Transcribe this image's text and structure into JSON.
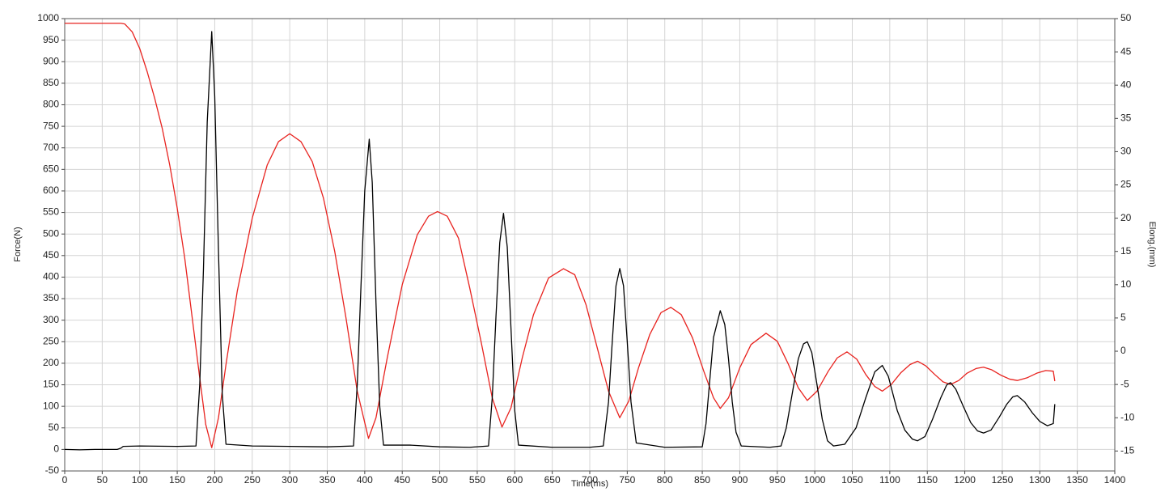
{
  "chart_data": {
    "type": "line",
    "xlabel": "Time(ms)",
    "ylabel": "Force(N)",
    "y2label": "Elong.(mm)",
    "xlim": [
      0,
      1400
    ],
    "xticks": [
      0,
      50,
      100,
      150,
      200,
      250,
      300,
      350,
      400,
      450,
      500,
      550,
      600,
      650,
      700,
      750,
      800,
      850,
      900,
      950,
      1000,
      1050,
      1100,
      1150,
      1200,
      1250,
      1300,
      1350,
      1400
    ],
    "ylim": [
      -50,
      1000
    ],
    "yticks": [
      -50,
      0,
      50,
      100,
      150,
      200,
      250,
      300,
      350,
      400,
      450,
      500,
      550,
      600,
      650,
      700,
      750,
      800,
      850,
      900,
      950,
      1000
    ],
    "y2lim": [
      -18,
      50
    ],
    "y2ticks": [
      -15,
      -10,
      -5,
      0,
      5,
      10,
      15,
      20,
      25,
      30,
      35,
      40,
      45,
      50
    ],
    "grid": true,
    "series": [
      {
        "name": "Force",
        "color": "#000000",
        "axis": "y",
        "x": [
          0,
          20,
          40,
          70,
          75,
          78,
          100,
          150,
          175,
          180,
          185,
          190,
          196,
          200,
          205,
          210,
          215,
          250,
          300,
          350,
          385,
          390,
          395,
          400,
          406,
          410,
          415,
          420,
          425,
          460,
          500,
          540,
          565,
          570,
          575,
          580,
          585,
          590,
          595,
          600,
          605,
          650,
          700,
          718,
          725,
          730,
          735,
          740,
          745,
          750,
          755,
          762,
          800,
          850,
          855,
          860,
          865,
          874,
          880,
          885,
          890,
          895,
          902,
          940,
          955,
          962,
          970,
          978,
          985,
          990,
          996,
          1003,
          1010,
          1017,
          1025,
          1040,
          1055,
          1068,
          1080,
          1090,
          1098,
          1110,
          1120,
          1130,
          1137,
          1147,
          1157,
          1168,
          1176,
          1181,
          1188,
          1198,
          1208,
          1217,
          1225,
          1235,
          1246,
          1256,
          1264,
          1270,
          1280,
          1290,
          1300,
          1310,
          1318,
          1320
        ],
        "values": [
          0,
          -1,
          0,
          0,
          3,
          7,
          8,
          7,
          8,
          150,
          420,
          760,
          970,
          820,
          460,
          130,
          12,
          8,
          7,
          6,
          8,
          150,
          380,
          600,
          720,
          620,
          340,
          100,
          10,
          10,
          6,
          5,
          8,
          120,
          310,
          480,
          548,
          470,
          280,
          90,
          10,
          5,
          5,
          8,
          110,
          250,
          380,
          420,
          380,
          250,
          110,
          15,
          5,
          6,
          60,
          160,
          260,
          322,
          290,
          210,
          110,
          40,
          8,
          5,
          8,
          50,
          130,
          210,
          245,
          250,
          225,
          150,
          70,
          20,
          8,
          12,
          50,
          120,
          180,
          195,
          170,
          90,
          45,
          24,
          20,
          30,
          70,
          120,
          150,
          155,
          140,
          100,
          62,
          43,
          38,
          45,
          75,
          105,
          122,
          125,
          110,
          85,
          65,
          55,
          60,
          105
        ]
      },
      {
        "name": "Elong.",
        "color": "#e8231f",
        "axis": "y2",
        "x": [
          0,
          75,
          80,
          90,
          100,
          110,
          120,
          130,
          140,
          150,
          160,
          170,
          180,
          188,
          196,
          205,
          215,
          230,
          250,
          270,
          285,
          300,
          315,
          330,
          345,
          360,
          375,
          390,
          405,
          415,
          430,
          450,
          470,
          485,
          497,
          510,
          525,
          540,
          555,
          570,
          583,
          595,
          610,
          625,
          645,
          665,
          680,
          695,
          710,
          725,
          740,
          752,
          765,
          780,
          795,
          808,
          822,
          837,
          852,
          865,
          874,
          885,
          900,
          915,
          935,
          950,
          965,
          978,
          990,
          1003,
          1018,
          1030,
          1043,
          1056,
          1068,
          1080,
          1090,
          1102,
          1115,
          1127,
          1137,
          1148,
          1160,
          1171,
          1181,
          1192,
          1203,
          1215,
          1225,
          1236,
          1248,
          1260,
          1270,
          1283,
          1296,
          1308,
          1318,
          1320
        ],
        "values": [
          49.3,
          49.3,
          49.2,
          48,
          45.5,
          42,
          38,
          33.5,
          28,
          21.5,
          14,
          5,
          -4,
          -11,
          -14.5,
          -10,
          -2,
          9,
          20,
          28,
          31.5,
          32.7,
          31.5,
          28.5,
          23,
          15,
          5,
          -6,
          -13.1,
          -10,
          -1,
          10,
          17.5,
          20.3,
          21,
          20.3,
          17,
          9.5,
          1.5,
          -7,
          -11.4,
          -8.5,
          -1,
          5.5,
          11,
          12.4,
          11.5,
          7,
          0.5,
          -6,
          -10,
          -7.5,
          -2.5,
          2.5,
          5.8,
          6.6,
          5.5,
          2,
          -3,
          -7,
          -8.6,
          -7,
          -2.5,
          1,
          2.7,
          1.5,
          -2,
          -5.5,
          -7.4,
          -6,
          -3,
          -1,
          -0.1,
          -1.2,
          -3.5,
          -5.3,
          -6,
          -5,
          -3.2,
          -2,
          -1.5,
          -2.2,
          -3.5,
          -4.6,
          -5,
          -4.4,
          -3.3,
          -2.6,
          -2.4,
          -2.8,
          -3.6,
          -4.2,
          -4.4,
          -4,
          -3.3,
          -2.9,
          -3,
          -4.5
        ]
      }
    ]
  }
}
